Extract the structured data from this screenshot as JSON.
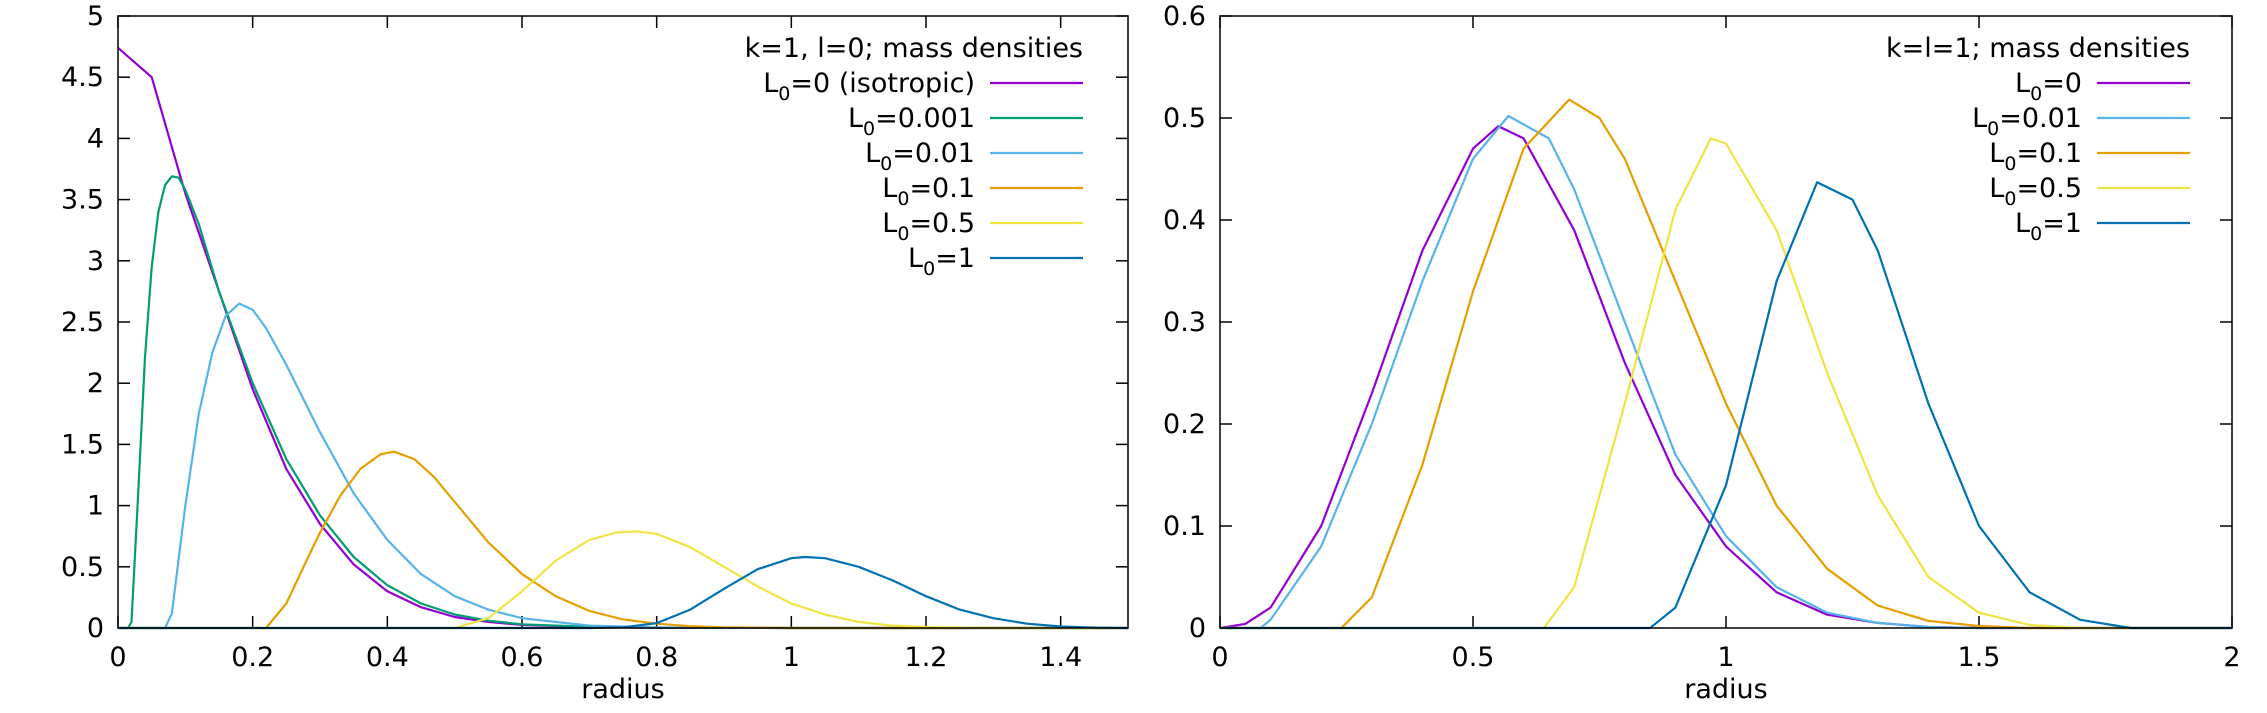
{
  "chart_data": [
    {
      "type": "line",
      "title": "k=1, l=0; mass densities",
      "xlabel": "radius",
      "ylabel": "",
      "xlim": [
        0,
        1.5
      ],
      "ylim": [
        0,
        5
      ],
      "xticks": [
        0,
        0.2,
        0.4,
        0.6,
        0.8,
        1,
        1.2,
        1.4
      ],
      "xtick_labels": [
        "0",
        "0.2",
        "0.4",
        "0.6",
        "0.8",
        "1",
        "1.2",
        "1.4"
      ],
      "yticks": [
        0,
        0.5,
        1,
        1.5,
        2,
        2.5,
        3,
        3.5,
        4,
        4.5,
        5
      ],
      "ytick_labels": [
        "0",
        "0.5",
        "1",
        "1.5",
        "2",
        "2.5",
        "3",
        "3.5",
        "4",
        "4.5",
        "5"
      ],
      "legend_position": "top-right",
      "series": [
        {
          "name": "L0=0 (isotropic)",
          "label_main": "L",
          "label_sub": "0",
          "label_rest": "=0 (isotropic)",
          "color": "#9400d3",
          "x": [
            0,
            0.05,
            0.1,
            0.15,
            0.2,
            0.25,
            0.3,
            0.35,
            0.4,
            0.45,
            0.5,
            0.55,
            0.6,
            0.7,
            0.8,
            0.9,
            1.0,
            1.2,
            1.5
          ],
          "y": [
            4.74,
            4.5,
            3.55,
            2.75,
            1.95,
            1.3,
            0.85,
            0.52,
            0.3,
            0.17,
            0.09,
            0.05,
            0.025,
            0.008,
            0.002,
            0.001,
            0,
            0,
            0
          ]
        },
        {
          "name": "L0=0.001",
          "label_main": "L",
          "label_sub": "0",
          "label_rest": "=0.001",
          "color": "#009e73",
          "x": [
            0,
            0.015,
            0.02,
            0.03,
            0.04,
            0.05,
            0.06,
            0.07,
            0.08,
            0.09,
            0.1,
            0.12,
            0.15,
            0.2,
            0.25,
            0.3,
            0.35,
            0.4,
            0.45,
            0.5,
            0.55,
            0.6,
            0.7,
            0.8,
            1.0,
            1.5
          ],
          "y": [
            0,
            0,
            0.05,
            1.1,
            2.2,
            2.95,
            3.4,
            3.62,
            3.69,
            3.68,
            3.58,
            3.3,
            2.75,
            2.0,
            1.38,
            0.92,
            0.58,
            0.35,
            0.2,
            0.11,
            0.06,
            0.03,
            0.01,
            0.003,
            0,
            0
          ]
        },
        {
          "name": "L0=0.01",
          "label_main": "L",
          "label_sub": "0",
          "label_rest": "=0.01",
          "color": "#56b4e9",
          "x": [
            0,
            0.07,
            0.08,
            0.1,
            0.12,
            0.14,
            0.16,
            0.18,
            0.2,
            0.22,
            0.25,
            0.3,
            0.35,
            0.4,
            0.45,
            0.5,
            0.55,
            0.6,
            0.7,
            0.8,
            0.9,
            1.0,
            1.5
          ],
          "y": [
            0,
            0,
            0.12,
            1.0,
            1.75,
            2.25,
            2.55,
            2.65,
            2.6,
            2.45,
            2.15,
            1.6,
            1.1,
            0.72,
            0.44,
            0.26,
            0.15,
            0.08,
            0.02,
            0.005,
            0.001,
            0,
            0
          ]
        },
        {
          "name": "L0=0.1",
          "label_main": "L",
          "label_sub": "0",
          "label_rest": "=0.1",
          "color": "#e69f00",
          "x": [
            0,
            0.22,
            0.25,
            0.28,
            0.3,
            0.33,
            0.36,
            0.39,
            0.41,
            0.44,
            0.47,
            0.5,
            0.55,
            0.6,
            0.65,
            0.7,
            0.75,
            0.8,
            0.85,
            0.9,
            1.0,
            1.5
          ],
          "y": [
            0,
            0,
            0.2,
            0.55,
            0.78,
            1.08,
            1.3,
            1.42,
            1.44,
            1.38,
            1.23,
            1.03,
            0.7,
            0.44,
            0.26,
            0.14,
            0.07,
            0.035,
            0.015,
            0.006,
            0,
            0
          ]
        },
        {
          "name": "L0=0.5",
          "label_main": "L",
          "label_sub": "0",
          "label_rest": "=0.5",
          "color": "#f0e442",
          "x": [
            0,
            0.5,
            0.55,
            0.6,
            0.65,
            0.7,
            0.74,
            0.77,
            0.8,
            0.85,
            0.9,
            0.95,
            1.0,
            1.05,
            1.1,
            1.15,
            1.2,
            1.3,
            1.5
          ],
          "y": [
            0,
            0,
            0.08,
            0.3,
            0.55,
            0.72,
            0.78,
            0.79,
            0.77,
            0.66,
            0.5,
            0.34,
            0.2,
            0.11,
            0.05,
            0.02,
            0.008,
            0,
            0
          ]
        },
        {
          "name": "L0=1",
          "label_main": "L",
          "label_sub": "0",
          "label_rest": "=1",
          "color": "#0072b2",
          "x": [
            0,
            0.7,
            0.75,
            0.8,
            0.85,
            0.9,
            0.95,
            1.0,
            1.02,
            1.05,
            1.1,
            1.15,
            1.2,
            1.25,
            1.3,
            1.35,
            1.4,
            1.45,
            1.5
          ],
          "y": [
            0,
            0,
            0.005,
            0.04,
            0.15,
            0.32,
            0.48,
            0.57,
            0.58,
            0.57,
            0.5,
            0.39,
            0.26,
            0.15,
            0.08,
            0.035,
            0.012,
            0.003,
            0
          ]
        }
      ]
    },
    {
      "type": "line",
      "title": "k=l=1; mass densities",
      "xlabel": "radius",
      "ylabel": "",
      "xlim": [
        0,
        2
      ],
      "ylim": [
        0,
        0.6
      ],
      "xticks": [
        0,
        0.5,
        1,
        1.5,
        2
      ],
      "xtick_labels": [
        "0",
        "0.5",
        "1",
        "1.5",
        "2"
      ],
      "yticks": [
        0,
        0.1,
        0.2,
        0.3,
        0.4,
        0.5,
        0.6
      ],
      "ytick_labels": [
        "0",
        "0.1",
        "0.2",
        "0.3",
        "0.4",
        "0.5",
        "0.6"
      ],
      "legend_position": "top-right",
      "series": [
        {
          "name": "L0=0",
          "label_main": "L",
          "label_sub": "0",
          "label_rest": "=0",
          "color": "#9400d3",
          "x": [
            0,
            0.05,
            0.1,
            0.2,
            0.3,
            0.4,
            0.5,
            0.55,
            0.6,
            0.7,
            0.8,
            0.9,
            1.0,
            1.1,
            1.2,
            1.3,
            1.4,
            1.5,
            2.0
          ],
          "y": [
            0,
            0.004,
            0.02,
            0.1,
            0.23,
            0.37,
            0.47,
            0.492,
            0.48,
            0.39,
            0.26,
            0.15,
            0.08,
            0.035,
            0.013,
            0.005,
            0.001,
            0,
            0
          ]
        },
        {
          "name": "L0=0.01",
          "label_main": "L",
          "label_sub": "0",
          "label_rest": "=0.01",
          "color": "#56b4e9",
          "x": [
            0,
            0.08,
            0.1,
            0.2,
            0.3,
            0.4,
            0.5,
            0.57,
            0.65,
            0.7,
            0.8,
            0.9,
            1.0,
            1.1,
            1.2,
            1.3,
            1.4,
            1.5,
            2.0
          ],
          "y": [
            0,
            0,
            0.008,
            0.08,
            0.2,
            0.34,
            0.46,
            0.502,
            0.48,
            0.43,
            0.3,
            0.17,
            0.09,
            0.04,
            0.015,
            0.005,
            0.001,
            0,
            0
          ]
        },
        {
          "name": "L0=0.1",
          "label_main": "L",
          "label_sub": "0",
          "label_rest": "=0.1",
          "color": "#e69f00",
          "x": [
            0,
            0.24,
            0.3,
            0.4,
            0.5,
            0.6,
            0.69,
            0.75,
            0.8,
            0.9,
            1.0,
            1.1,
            1.2,
            1.3,
            1.4,
            1.5,
            1.6,
            2.0
          ],
          "y": [
            0,
            0,
            0.03,
            0.16,
            0.33,
            0.47,
            0.518,
            0.5,
            0.46,
            0.34,
            0.22,
            0.12,
            0.058,
            0.022,
            0.007,
            0.002,
            0,
            0
          ]
        },
        {
          "name": "L0=0.5",
          "label_main": "L",
          "label_sub": "0",
          "label_rest": "=0.5",
          "color": "#f0e442",
          "x": [
            0,
            0.64,
            0.7,
            0.8,
            0.9,
            0.97,
            1.0,
            1.1,
            1.2,
            1.3,
            1.4,
            1.5,
            1.6,
            1.7,
            2.0
          ],
          "y": [
            0,
            0,
            0.04,
            0.22,
            0.41,
            0.48,
            0.475,
            0.39,
            0.25,
            0.13,
            0.05,
            0.015,
            0.003,
            0,
            0
          ]
        },
        {
          "name": "L0=1",
          "label_main": "L",
          "label_sub": "0",
          "label_rest": "=1",
          "color": "#0072b2",
          "x": [
            0,
            0.85,
            0.9,
            1.0,
            1.1,
            1.18,
            1.25,
            1.3,
            1.4,
            1.5,
            1.6,
            1.7,
            1.8,
            2.0
          ],
          "y": [
            0,
            0,
            0.02,
            0.14,
            0.34,
            0.437,
            0.42,
            0.37,
            0.22,
            0.1,
            0.035,
            0.008,
            0,
            0
          ]
        }
      ]
    }
  ]
}
